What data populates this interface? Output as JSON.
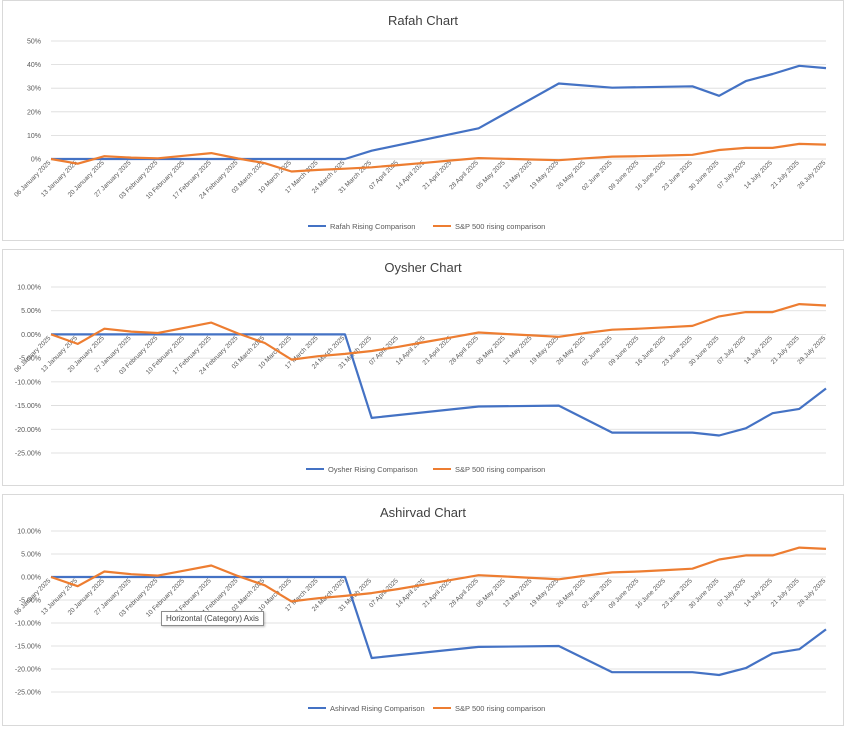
{
  "colors": {
    "stock": "#4472c4",
    "sp500": "#ed7d31"
  },
  "tooltip_text": "Horizontal (Category) Axis",
  "chart_data": [
    {
      "type": "line",
      "title": "Rafah Chart",
      "categories": [
        "06 January 2025",
        "13 January 2025",
        "20 January 2025",
        "27 January 2025",
        "03 February 2025",
        "10 February 2025",
        "17 February 2025",
        "24 February 2025",
        "03 March 2025",
        "10 March 2025",
        "17 March 2025",
        "24 March 2025",
        "31 March 2025",
        "07 April 2025",
        "14 April 2025",
        "21 April 2025",
        "28 April 2025",
        "05 May 2025",
        "12 May 2025",
        "19 May 2025",
        "26 May 2025",
        "02 June 2025",
        "09 June 2025",
        "16 June 2025",
        "23 June 2025",
        "30 June 2025",
        "07 July 2025",
        "14 July 2025",
        "21 July 2025",
        "28 July 2025"
      ],
      "yticks": [
        "50%",
        "40%",
        "30%",
        "20%",
        "10%",
        "0%"
      ],
      "ylim": [
        0,
        50
      ],
      "grid": true,
      "legend_position": "bottom",
      "series": [
        {
          "name": "Rafah Rising Comparison",
          "color": "#4472c4",
          "x": [
            0,
            1,
            2,
            3,
            4,
            5,
            6,
            7,
            8,
            9,
            10,
            11,
            12,
            16,
            19,
            21,
            24,
            25,
            26,
            27,
            28,
            29
          ],
          "values": [
            0,
            0,
            0,
            0,
            0,
            0,
            0,
            0,
            0,
            0,
            0,
            0,
            3.5,
            13,
            32,
            30.2,
            30.8,
            26.8,
            33,
            36,
            39.5,
            38.5
          ]
        },
        {
          "name": "S&P 500 rising comparison",
          "color": "#ed7d31",
          "x": [
            0,
            1,
            2,
            3,
            4,
            5,
            6,
            7,
            8,
            9,
            10,
            11,
            12,
            13,
            14,
            15,
            16,
            17,
            18,
            19,
            20,
            21,
            22,
            23,
            24,
            25,
            26,
            27,
            28,
            29
          ],
          "values": [
            0,
            -2,
            1.2,
            0.6,
            0.3,
            1.4,
            2.5,
            0.2,
            -1.8,
            -5.3,
            -4.6,
            -4.1,
            -3.5,
            -2.6,
            -1.6,
            -0.6,
            0.4,
            0.1,
            -0.2,
            -0.5,
            0.3,
            1.0,
            1.2,
            1.5,
            1.8,
            3.8,
            4.7,
            4.7,
            6.4,
            6.1
          ]
        }
      ]
    },
    {
      "type": "line",
      "title": "Oysher Chart",
      "categories": [
        "06 January 2025",
        "13 January 2025",
        "20 January 2025",
        "27 January 2025",
        "03 February 2025",
        "10 February 2025",
        "17 February 2025",
        "24 February 2025",
        "03 March 2025",
        "10 March 2025",
        "17 March 2025",
        "24 March 2025",
        "31 March 2025",
        "07 April 2025",
        "14 April 2025",
        "21 April 2025",
        "28 April 2025",
        "05 May 2025",
        "12 May 2025",
        "19 May 2025",
        "26 May 2025",
        "02 June 2025",
        "09 June 2025",
        "16 June 2025",
        "23 June 2025",
        "30 June 2025",
        "07 July 2025",
        "14 July 2025",
        "21 July 2025",
        "28 July 2025"
      ],
      "yticks": [
        "10.00%",
        "5.00%",
        "0.00%",
        "-5.00%",
        "-10.00%",
        "-15.00%",
        "-20.00%",
        "-25.00%"
      ],
      "ylim": [
        -25,
        10
      ],
      "grid": true,
      "legend_position": "bottom",
      "series": [
        {
          "name": "Oysher Rising Comparison",
          "color": "#4472c4",
          "x": [
            0,
            1,
            2,
            3,
            4,
            5,
            6,
            7,
            8,
            9,
            10,
            11,
            12,
            16,
            19,
            21,
            24,
            25,
            26,
            27,
            28,
            29
          ],
          "values": [
            0,
            0,
            0,
            0,
            0,
            0,
            0,
            0,
            0,
            0,
            0,
            0,
            -17.6,
            -15.2,
            -15,
            -20.7,
            -20.7,
            -21.3,
            -19.8,
            -16.6,
            -15.7,
            -11.4
          ]
        },
        {
          "name": "S&P 500 rising comparison",
          "color": "#ed7d31",
          "x": [
            0,
            1,
            2,
            3,
            4,
            5,
            6,
            7,
            8,
            9,
            10,
            11,
            12,
            13,
            14,
            15,
            16,
            17,
            18,
            19,
            20,
            21,
            22,
            23,
            24,
            25,
            26,
            27,
            28,
            29
          ],
          "values": [
            0,
            -2,
            1.2,
            0.6,
            0.3,
            1.4,
            2.5,
            0.2,
            -1.8,
            -5.3,
            -4.6,
            -4.1,
            -3.5,
            -2.6,
            -1.6,
            -0.6,
            0.4,
            0.1,
            -0.2,
            -0.5,
            0.3,
            1.0,
            1.2,
            1.5,
            1.8,
            3.8,
            4.7,
            4.7,
            6.4,
            6.1
          ]
        }
      ]
    },
    {
      "type": "line",
      "title": "Ashirvad Chart",
      "categories": [
        "06 January 2025",
        "13 January 2025",
        "20 January 2025",
        "27 January 2025",
        "03 February 2025",
        "10 February 2025",
        "17 February 2025",
        "24 February 2025",
        "03 March 2025",
        "10 March 2025",
        "17 March 2025",
        "24 March 2025",
        "31 March 2025",
        "07 April 2025",
        "14 April 2025",
        "21 April 2025",
        "28 April 2025",
        "05 May 2025",
        "12 May 2025",
        "19 May 2025",
        "26 May 2025",
        "02 June 2025",
        "09 June 2025",
        "16 June 2025",
        "23 June 2025",
        "30 June 2025",
        "07 July 2025",
        "14 July 2025",
        "21 July 2025",
        "28 July 2025"
      ],
      "yticks": [
        "10.00%",
        "5.00%",
        "0.00%",
        "-5.00%",
        "-10.00%",
        "-15.00%",
        "-20.00%",
        "-25.00%"
      ],
      "ylim": [
        -25,
        10
      ],
      "grid": true,
      "legend_position": "bottom",
      "series": [
        {
          "name": "Ashirvad Rising Comparison",
          "color": "#4472c4",
          "x": [
            0,
            1,
            2,
            3,
            4,
            5,
            6,
            7,
            8,
            9,
            10,
            11,
            12,
            16,
            19,
            21,
            24,
            25,
            26,
            27,
            28,
            29
          ],
          "values": [
            0,
            0,
            0,
            0,
            0,
            0,
            0,
            0,
            0,
            0,
            0,
            0,
            -17.6,
            -15.2,
            -15,
            -20.7,
            -20.7,
            -21.3,
            -19.8,
            -16.6,
            -15.7,
            -11.4
          ]
        },
        {
          "name": "S&P 500 rising comparison",
          "color": "#ed7d31",
          "x": [
            0,
            1,
            2,
            3,
            4,
            5,
            6,
            7,
            8,
            9,
            10,
            11,
            12,
            13,
            14,
            15,
            16,
            17,
            18,
            19,
            20,
            21,
            22,
            23,
            24,
            25,
            26,
            27,
            28,
            29
          ],
          "values": [
            0,
            -2,
            1.2,
            0.6,
            0.3,
            1.4,
            2.5,
            0.2,
            -1.8,
            -5.3,
            -4.6,
            -4.1,
            -3.5,
            -2.6,
            -1.6,
            -0.6,
            0.4,
            0.1,
            -0.2,
            -0.5,
            0.3,
            1.0,
            1.2,
            1.5,
            1.8,
            3.8,
            4.7,
            4.7,
            6.4,
            6.1
          ]
        }
      ]
    }
  ]
}
